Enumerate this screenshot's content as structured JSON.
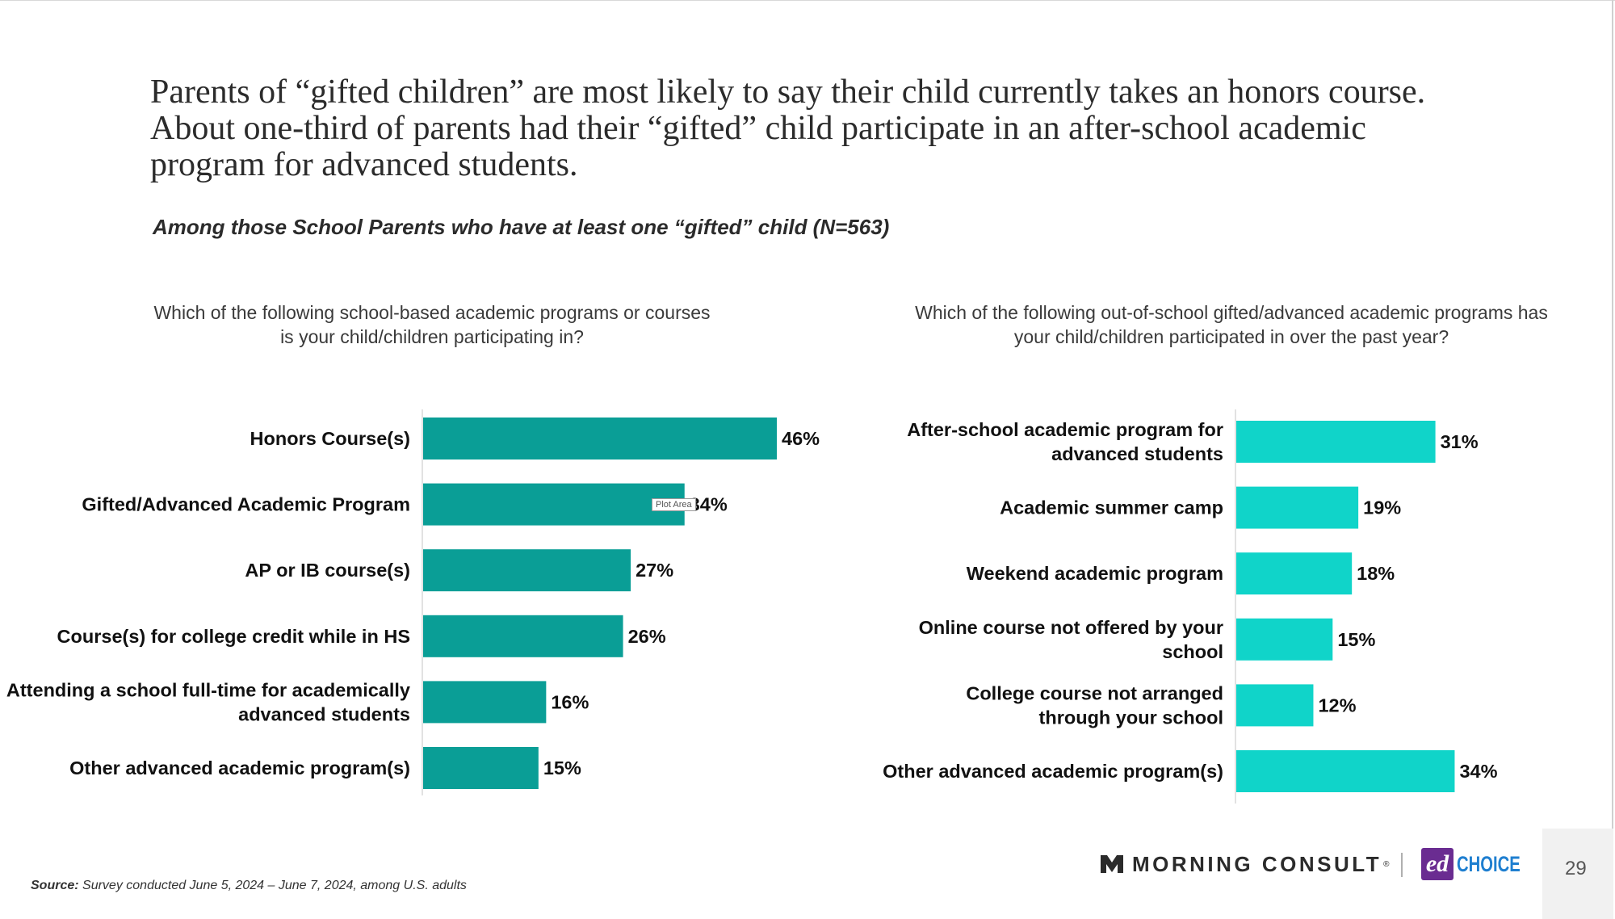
{
  "headline": "Parents of “gifted children” are most likely to say their child currently takes an honors course. About one-third of parents had their “gifted” child participate in an after-school academic program for advanced students.",
  "subhead": "Among those School Parents who have at least one “gifted” child (N=563)",
  "plot_area_tooltip": "Plot Area",
  "source": {
    "key": "Source:",
    "text": "Survey conducted June 5, 2024  –  June 7, 2024, among U.S. adults"
  },
  "logos": {
    "morning_consult": "MORNING CONSULT",
    "morning_consult_tm": "®",
    "edchoice_ed": "ed",
    "edchoice_choice": "CHOICE",
    "edchoice_color": "#6a2c91",
    "choice_color": "#1f7fd0"
  },
  "page_number": "29",
  "chart_data": [
    {
      "type": "bar",
      "orientation": "horizontal",
      "title": "Which of the following school-based academic programs or courses is your child/children participating in?",
      "categories": [
        "Honors Course(s)",
        "Gifted/Advanced Academic Program",
        "AP or IB course(s)",
        "Course(s) for college credit while in HS",
        "Attending a school full-time for academically advanced students",
        "Other advanced academic program(s)"
      ],
      "values": [
        46,
        34,
        27,
        26,
        16,
        15
      ],
      "value_labels": [
        "46%",
        "34%",
        "27%",
        "26%",
        "16%",
        "15%"
      ],
      "color": "#0a9e96",
      "xlim": [
        0,
        100
      ],
      "grid": false,
      "legend": "none"
    },
    {
      "type": "bar",
      "orientation": "horizontal",
      "title": "Which of the following out-of-school gifted/advanced academic programs has your child/children participated in over the past year?",
      "categories": [
        "After-school academic program for advanced students",
        "Academic summer camp",
        "Weekend academic program",
        "Online course not offered by your school",
        "College course not arranged through your school",
        "Other advanced academic program(s)"
      ],
      "values": [
        31,
        19,
        18,
        15,
        12,
        34
      ],
      "value_labels": [
        "31%",
        "19%",
        "18%",
        "15%",
        "12%",
        "34%"
      ],
      "color": "#10d4c9",
      "xlim": [
        0,
        100
      ],
      "grid": false,
      "legend": "none"
    }
  ]
}
